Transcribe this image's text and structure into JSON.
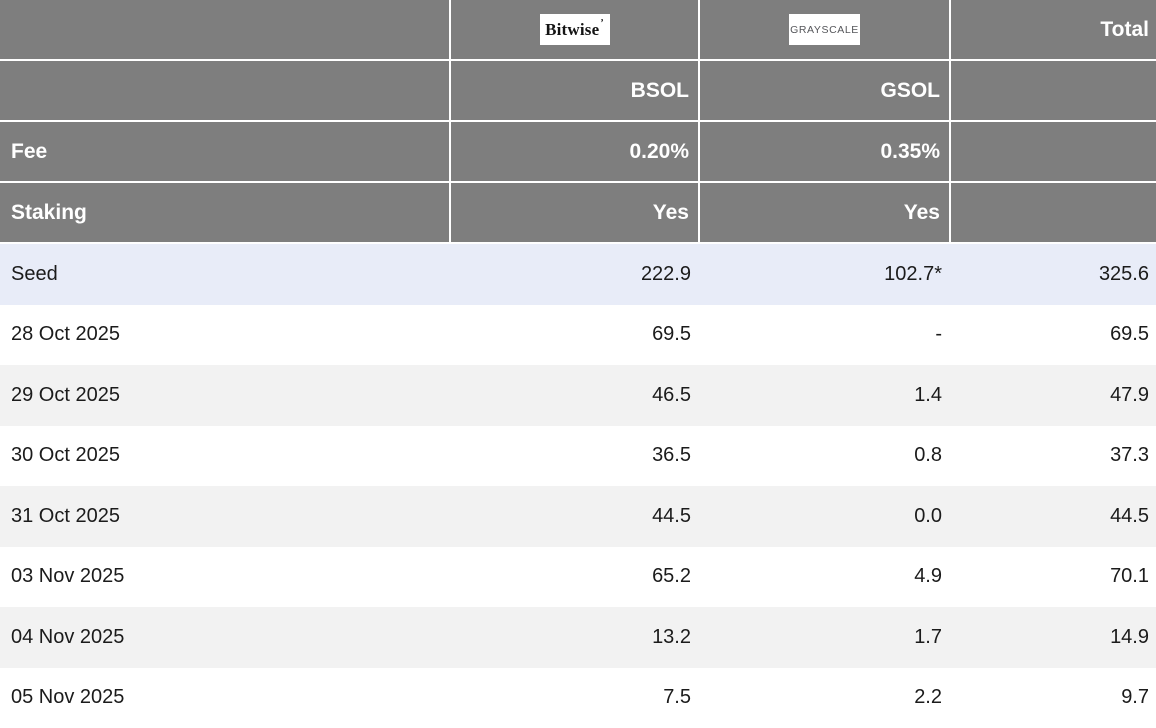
{
  "chart_data": {
    "type": "table",
    "providers": [
      {
        "logo": "Bitwise",
        "logo_mark": "’",
        "ticker": "BSOL",
        "fee": "0.20%",
        "staking": "Yes"
      },
      {
        "logo": "GRAYSCALE",
        "ticker": "GSOL",
        "fee": "0.35%",
        "staking": "Yes"
      }
    ],
    "total_label": "Total",
    "row_labels": {
      "fee": "Fee",
      "staking": "Staking"
    },
    "rows": [
      {
        "label": "Seed",
        "bsol": "222.9",
        "gsol": "102.7*",
        "total": "325.6",
        "highlight": true
      },
      {
        "label": "28 Oct 2025",
        "bsol": "69.5",
        "gsol": "-",
        "total": "69.5"
      },
      {
        "label": "29 Oct 2025",
        "bsol": "46.5",
        "gsol": "1.4",
        "total": "47.9"
      },
      {
        "label": "30 Oct 2025",
        "bsol": "36.5",
        "gsol": "0.8",
        "total": "37.3"
      },
      {
        "label": "31 Oct 2025",
        "bsol": "44.5",
        "gsol": "0.0",
        "total": "44.5"
      },
      {
        "label": "03 Nov 2025",
        "bsol": "65.2",
        "gsol": "4.9",
        "total": "70.1"
      },
      {
        "label": "04 Nov 2025",
        "bsol": "13.2",
        "gsol": "1.7",
        "total": "14.9"
      },
      {
        "label": "05 Nov 2025",
        "bsol": "7.5",
        "gsol": "2.2",
        "total": "9.7"
      }
    ],
    "colors": {
      "header_bg": "#7e7e7e",
      "header_text": "#ffffff",
      "seed_row_bg": "#e8ecf8",
      "alt_row_bg": "#f2f2f2",
      "body_text": "#1b1b1b"
    }
  }
}
